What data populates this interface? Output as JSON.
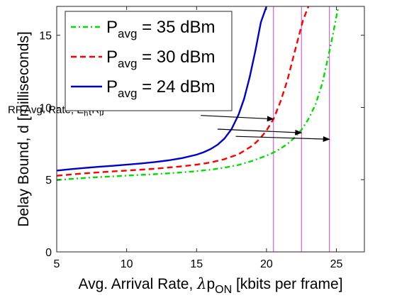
{
  "chart_data": {
    "type": "line",
    "title": "",
    "xlabel": {
      "prefix": "Avg. Arrival Rate, ",
      "lambda": "λ",
      "p": "p",
      "sub": "ON",
      "suffix": " [kbits per frame]"
    },
    "ylabel": "Delay Bound, d [milliseconds]",
    "xlim": [
      5,
      27
    ],
    "ylim": [
      0,
      17
    ],
    "xticks": [
      5,
      10,
      15,
      20,
      25
    ],
    "yticks": [
      0,
      5,
      10,
      15
    ],
    "grid": false,
    "legend_position": "top-left",
    "legend": [
      {
        "p": "P",
        "sub": "avg",
        "rest": " = 35 dBm"
      },
      {
        "p": "P",
        "sub": "avg",
        "rest": " = 30 dBm"
      },
      {
        "p": "P",
        "sub": "avg",
        "rest": " = 24 dBm"
      }
    ],
    "series": [
      {
        "label_index": 0,
        "color": "#00dd00",
        "dash": "dashdot",
        "x": [
          5,
          6,
          7,
          8,
          9,
          10,
          11,
          12,
          13,
          14,
          15,
          16,
          17,
          18,
          19,
          20,
          20.5,
          21,
          21.5,
          22,
          22.5,
          23,
          23.5,
          24,
          24.5,
          24.8,
          25.0,
          25.15
        ],
        "y": [
          4.97,
          5.05,
          5.12,
          5.18,
          5.23,
          5.28,
          5.33,
          5.38,
          5.44,
          5.51,
          5.59,
          5.69,
          5.83,
          6.02,
          6.31,
          6.66,
          6.88,
          7.15,
          7.48,
          7.9,
          8.45,
          9.2,
          10.2,
          11.7,
          13.9,
          15.3,
          16.3,
          17.0
        ]
      },
      {
        "label_index": 1,
        "color": "#ff0000",
        "dash": "dash",
        "x": [
          5,
          6,
          7,
          8,
          9,
          10,
          11,
          12,
          13,
          14,
          15,
          16,
          17,
          18,
          19,
          19.5,
          20,
          20.5,
          21,
          21.5,
          22,
          22.3,
          22.6,
          22.8,
          23.0
        ],
        "y": [
          5.27,
          5.36,
          5.44,
          5.51,
          5.57,
          5.63,
          5.69,
          5.76,
          5.84,
          5.93,
          6.04,
          6.19,
          6.42,
          6.76,
          7.36,
          7.8,
          8.4,
          9.2,
          10.4,
          11.9,
          13.8,
          14.9,
          16.0,
          16.5,
          17.0
        ]
      },
      {
        "label_index": 2,
        "color": "#0000cc",
        "dash": "solid",
        "x": [
          5,
          6,
          7,
          8,
          9,
          10,
          11,
          12,
          13,
          14,
          15,
          15.5,
          16,
          16.5,
          17,
          17.5,
          18,
          18.4,
          18.8,
          19.2,
          19.6,
          20.0
        ],
        "y": [
          5.63,
          5.73,
          5.81,
          5.89,
          5.96,
          6.04,
          6.12,
          6.22,
          6.34,
          6.5,
          6.73,
          6.9,
          7.12,
          7.42,
          7.85,
          8.5,
          9.5,
          10.6,
          12.1,
          13.9,
          15.9,
          17.0
        ]
      }
    ],
    "vlines": [
      20.5,
      22.5,
      24.5
    ],
    "vline_color": "#cc44cc",
    "annotation": {
      "text_prefix": "RF Avg. Rate, E",
      "sub1": "h",
      "mid": "{R",
      "sub2": "l",
      "end": "}",
      "text_x": 1.5,
      "text_y": 9.6,
      "arrows": [
        {
          "x1": 15.3,
          "y1": 9.45,
          "x2": 20.5,
          "y2": 9.2
        },
        {
          "x1": 16.5,
          "y1": 8.5,
          "x2": 22.5,
          "y2": 8.25
        },
        {
          "x1": 17.8,
          "y1": 8.0,
          "x2": 24.5,
          "y2": 7.8
        }
      ]
    }
  }
}
